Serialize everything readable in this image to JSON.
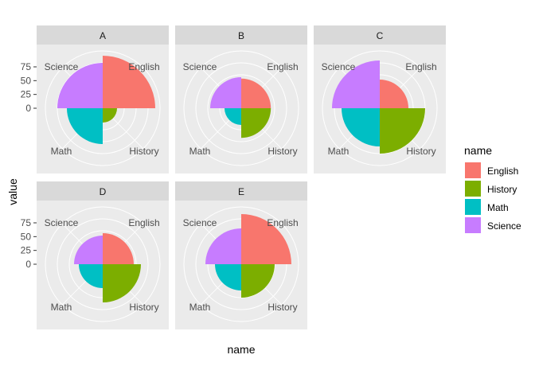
{
  "chart_data": {
    "type": "polar-bar",
    "xlabel": "name",
    "ylabel": "value",
    "yticks": [
      "75",
      "50",
      "25",
      "0"
    ],
    "categories": [
      "English",
      "History",
      "Math",
      "Science"
    ],
    "colors": {
      "English": "#F8766D",
      "History": "#7CAE00",
      "Math": "#00BFC4",
      "Science": "#C77CFF"
    },
    "legend": {
      "title": "name",
      "position": "right",
      "items": [
        "English",
        "History",
        "Math",
        "Science"
      ]
    },
    "panel_background": "#EBEBEB",
    "strip_background": "#D9D9D9",
    "grid": true,
    "facets": [
      {
        "label": "A",
        "values": {
          "English": 90,
          "History": 10,
          "Math": 55,
          "Science": 75
        }
      },
      {
        "label": "B",
        "values": {
          "English": 42,
          "History": 42,
          "Math": 15,
          "Science": 45
        }
      },
      {
        "label": "C",
        "values": {
          "English": 40,
          "History": 75,
          "Math": 60,
          "Science": 80
        }
      },
      {
        "label": "D",
        "values": {
          "English": 45,
          "History": 60,
          "Math": 30,
          "Science": 40
        }
      },
      {
        "label": "E",
        "values": {
          "English": 85,
          "History": 50,
          "Math": 35,
          "Science": 55
        }
      }
    ]
  }
}
